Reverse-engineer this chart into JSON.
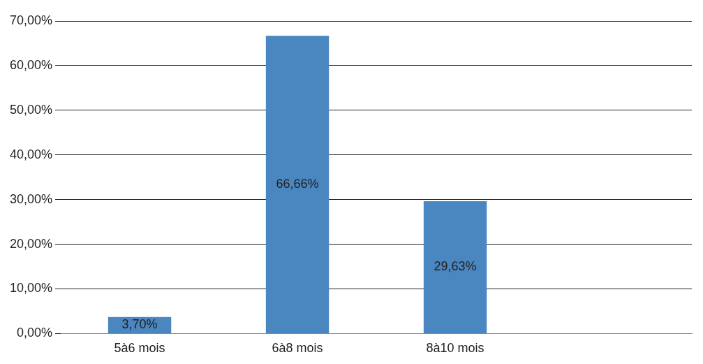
{
  "chart_data": {
    "type": "bar",
    "categories": [
      "5à6 mois",
      "6à8 mois",
      "8à10 mois",
      null
    ],
    "values": [
      3.7,
      66.66,
      29.63,
      null
    ],
    "value_labels": [
      "3,70%",
      "66,66%",
      "29,63%",
      null
    ],
    "color": "#4a86c0",
    "ylim": [
      0,
      70
    ],
    "yticks": [
      {
        "value": 0,
        "label": "0,00%"
      },
      {
        "value": 10,
        "label": "10,00%"
      },
      {
        "value": 20,
        "label": "20,00%"
      },
      {
        "value": 30,
        "label": "30,00%"
      },
      {
        "value": 40,
        "label": "40,00%"
      },
      {
        "value": 50,
        "label": "50,00%"
      },
      {
        "value": 60,
        "label": "60,00%"
      },
      {
        "value": 70,
        "label": "70,00%"
      }
    ],
    "grid": "y",
    "legend": false
  }
}
